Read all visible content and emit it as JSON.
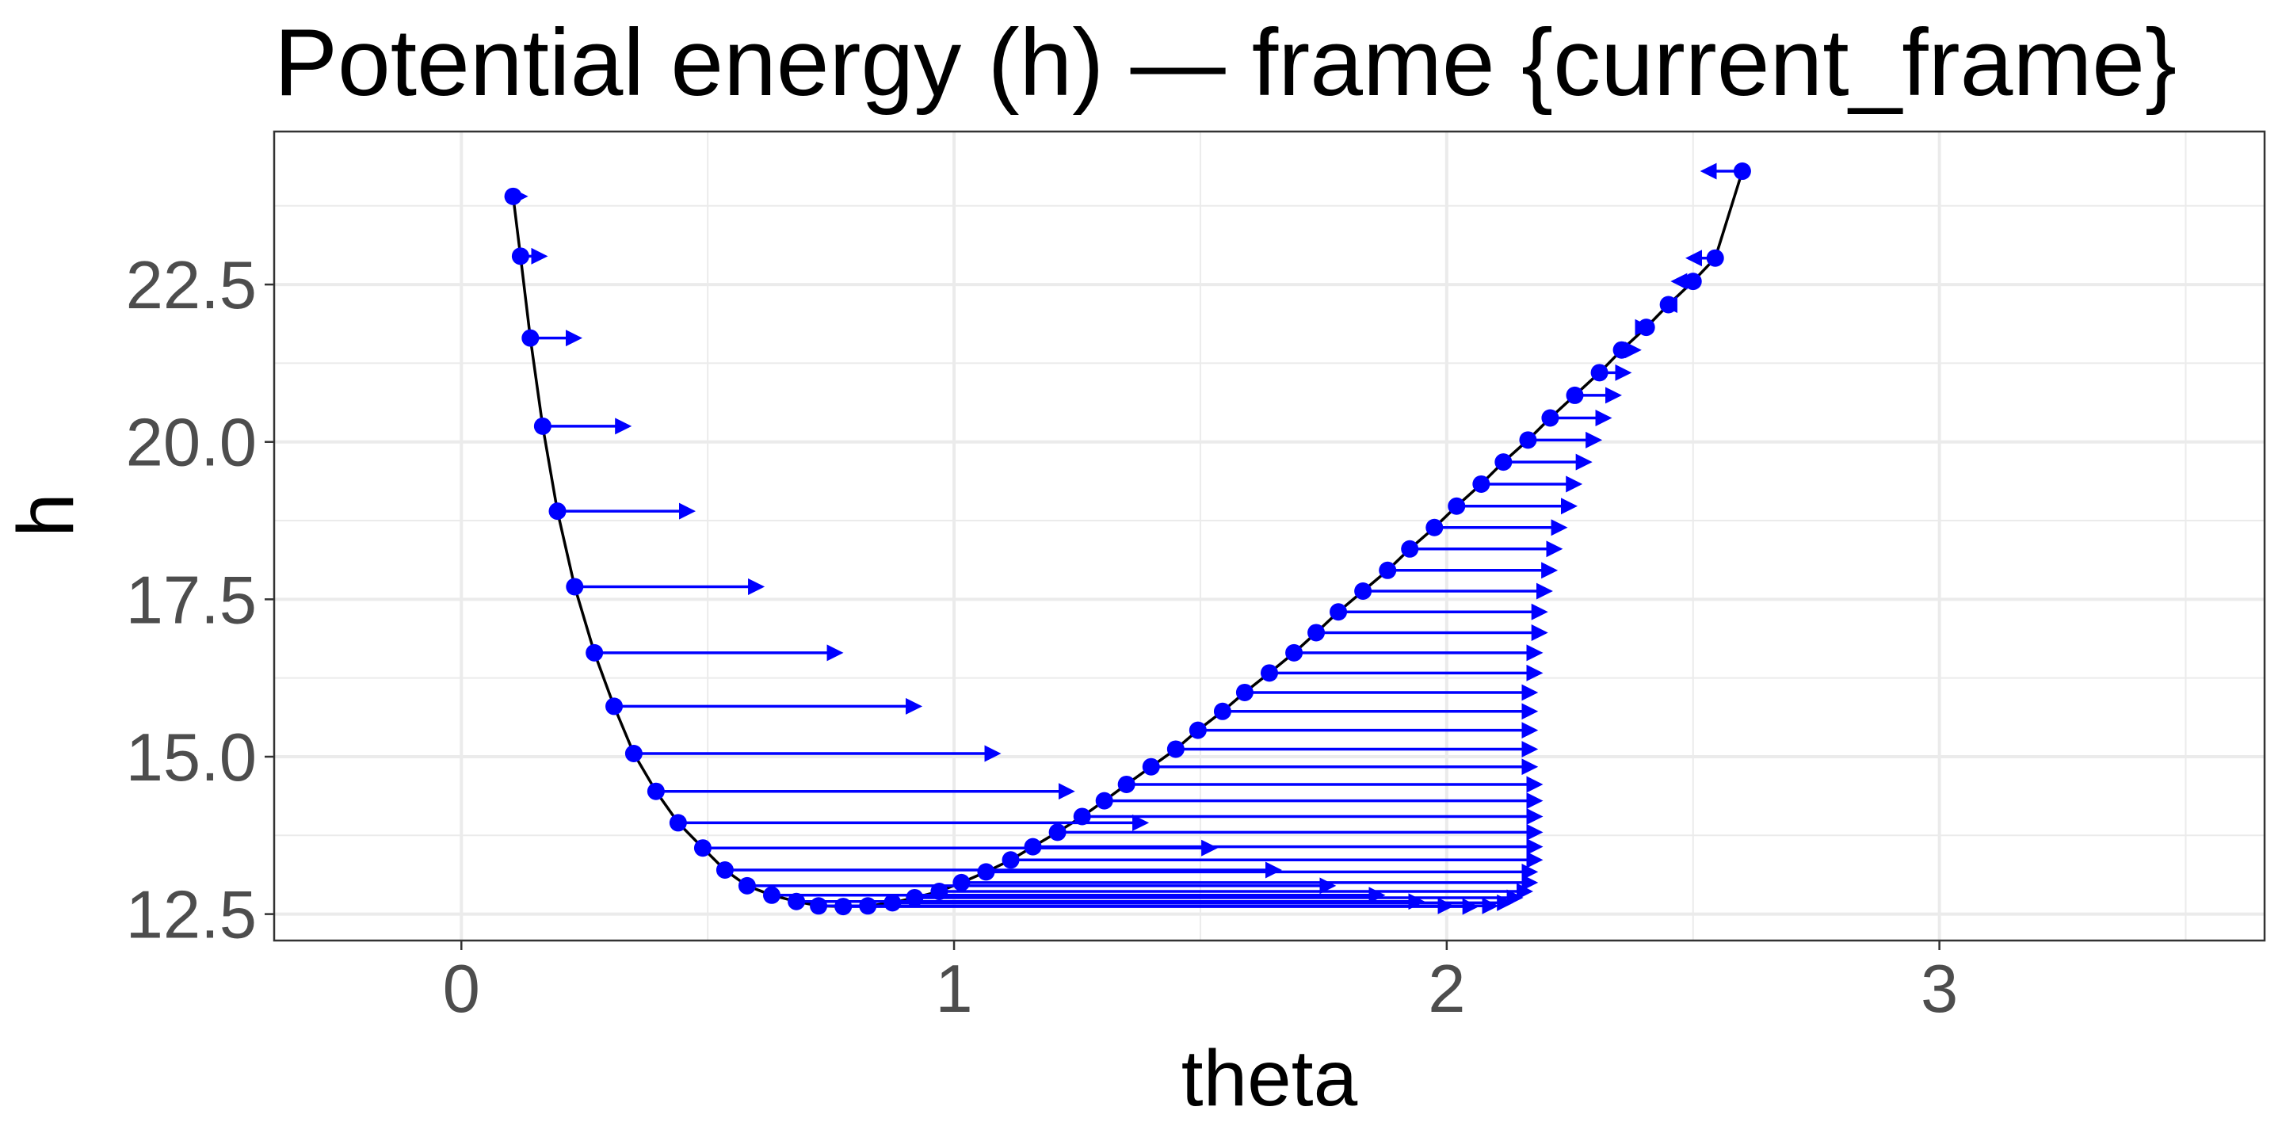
{
  "chart_data": {
    "type": "line",
    "title": "Potential energy (h) — frame {current_frame}",
    "xlabel": "theta",
    "ylabel": "h",
    "xlim": [
      -0.38,
      3.66
    ],
    "ylim": [
      12.08,
      24.93
    ],
    "xticks": [
      0,
      1,
      2,
      3
    ],
    "xtick_labels": [
      "0",
      "1",
      "2",
      "3"
    ],
    "yticks": [
      12.5,
      15.0,
      17.5,
      20.0,
      22.5
    ],
    "ytick_labels": [
      "12.5",
      "15.0",
      "17.5",
      "20.0",
      "22.5"
    ],
    "grid": true,
    "legend": "none",
    "colors": {
      "curve": "#000000",
      "points": "#0000ff",
      "arrows": "#0000ff",
      "panel_border": "#333333",
      "grid": "#ebebeb"
    },
    "series": [
      {
        "kind": "curve",
        "x": [
          0.105,
          0.12,
          0.14,
          0.165,
          0.195,
          0.23,
          0.27,
          0.31,
          0.35,
          0.395,
          0.44,
          0.49,
          0.535,
          0.58,
          0.63,
          0.68,
          0.725,
          0.775,
          0.825,
          0.875,
          0.92,
          0.97,
          1.015,
          1.065,
          1.115,
          1.16,
          1.21,
          1.26,
          1.305,
          1.35,
          1.4,
          1.45,
          1.495,
          1.545,
          1.59,
          1.64,
          1.69,
          1.735,
          1.78,
          1.83,
          1.88,
          1.925,
          1.975,
          2.02,
          2.07,
          2.115,
          2.165,
          2.21,
          2.26,
          2.31,
          2.355,
          2.405,
          2.45,
          2.5,
          2.545,
          2.6
        ],
        "y": [
          23.9,
          22.95,
          21.65,
          20.25,
          18.9,
          17.7,
          16.65,
          15.8,
          15.05,
          14.45,
          13.95,
          13.55,
          13.2,
          12.95,
          12.8,
          12.7,
          12.63,
          12.62,
          12.63,
          12.68,
          12.76,
          12.86,
          13.0,
          13.17,
          13.36,
          13.57,
          13.8,
          14.05,
          14.3,
          14.56,
          14.84,
          15.12,
          15.42,
          15.72,
          16.02,
          16.33,
          16.65,
          16.97,
          17.3,
          17.63,
          17.96,
          18.3,
          18.64,
          18.98,
          19.33,
          19.68,
          20.03,
          20.38,
          20.74,
          21.1,
          21.46,
          21.82,
          22.18,
          22.55,
          22.92,
          24.3
        ]
      },
      {
        "kind": "points",
        "x": [
          0.105,
          0.12,
          0.14,
          0.165,
          0.195,
          0.23,
          0.27,
          0.31,
          0.35,
          0.395,
          0.44,
          0.49,
          0.535,
          0.58,
          0.63,
          0.68,
          0.725,
          0.775,
          0.825,
          0.875,
          0.92,
          0.97,
          1.015,
          1.065,
          1.115,
          1.16,
          1.21,
          1.26,
          1.305,
          1.35,
          1.4,
          1.45,
          1.495,
          1.545,
          1.59,
          1.64,
          1.69,
          1.735,
          1.78,
          1.83,
          1.88,
          1.925,
          1.975,
          2.02,
          2.07,
          2.115,
          2.165,
          2.21,
          2.26,
          2.31,
          2.355,
          2.405,
          2.45,
          2.5,
          2.545,
          2.6
        ],
        "y": [
          23.9,
          22.95,
          21.65,
          20.25,
          18.9,
          17.7,
          16.65,
          15.8,
          15.05,
          14.45,
          13.95,
          13.55,
          13.2,
          12.95,
          12.8,
          12.7,
          12.63,
          12.62,
          12.63,
          12.68,
          12.76,
          12.86,
          13.0,
          13.17,
          13.36,
          13.57,
          13.8,
          14.05,
          14.3,
          14.56,
          14.84,
          15.12,
          15.42,
          15.72,
          16.02,
          16.33,
          16.65,
          16.97,
          17.3,
          17.63,
          17.96,
          18.3,
          18.64,
          18.98,
          19.33,
          19.68,
          20.03,
          20.38,
          20.74,
          21.1,
          21.46,
          21.82,
          22.18,
          22.55,
          22.92,
          24.3
        ]
      },
      {
        "kind": "arrows",
        "x": [
          0.105,
          0.12,
          0.14,
          0.165,
          0.195,
          0.23,
          0.27,
          0.31,
          0.35,
          0.395,
          0.44,
          0.49,
          0.535,
          0.58,
          0.63,
          0.68,
          0.725,
          0.775,
          0.825,
          0.875,
          0.92,
          0.97,
          1.015,
          1.065,
          1.115,
          1.16,
          1.21,
          1.26,
          1.305,
          1.35,
          1.4,
          1.45,
          1.495,
          1.545,
          1.59,
          1.64,
          1.69,
          1.735,
          1.78,
          1.83,
          1.88,
          1.925,
          1.975,
          2.02,
          2.07,
          2.115,
          2.165,
          2.21,
          2.26,
          2.31,
          2.355,
          2.405,
          2.45,
          2.5,
          2.545,
          2.6
        ],
        "y": [
          23.9,
          22.95,
          21.65,
          20.25,
          18.9,
          17.7,
          16.65,
          15.8,
          15.05,
          14.45,
          13.95,
          13.55,
          13.2,
          12.95,
          12.8,
          12.7,
          12.63,
          12.62,
          12.63,
          12.68,
          12.76,
          12.86,
          13.0,
          13.17,
          13.36,
          13.57,
          13.8,
          14.05,
          14.3,
          14.56,
          14.84,
          15.12,
          15.42,
          15.72,
          16.02,
          16.33,
          16.65,
          16.97,
          17.3,
          17.63,
          17.96,
          18.3,
          18.64,
          18.98,
          19.33,
          19.68,
          20.03,
          20.38,
          20.74,
          21.1,
          21.46,
          21.82,
          22.18,
          22.55,
          22.92,
          24.3
        ],
        "xend": [
          0.13,
          0.17,
          0.24,
          0.34,
          0.47,
          0.61,
          0.77,
          0.93,
          1.09,
          1.24,
          1.39,
          1.53,
          1.66,
          1.77,
          1.87,
          1.95,
          2.01,
          2.06,
          2.1,
          2.13,
          2.15,
          2.17,
          2.18,
          2.18,
          2.19,
          2.19,
          2.19,
          2.19,
          2.19,
          2.19,
          2.18,
          2.18,
          2.18,
          2.18,
          2.18,
          2.19,
          2.19,
          2.2,
          2.2,
          2.21,
          2.22,
          2.23,
          2.24,
          2.26,
          2.27,
          2.29,
          2.31,
          2.33,
          2.35,
          2.37,
          2.39,
          2.41,
          2.44,
          2.46,
          2.49,
          2.52
        ]
      }
    ]
  }
}
